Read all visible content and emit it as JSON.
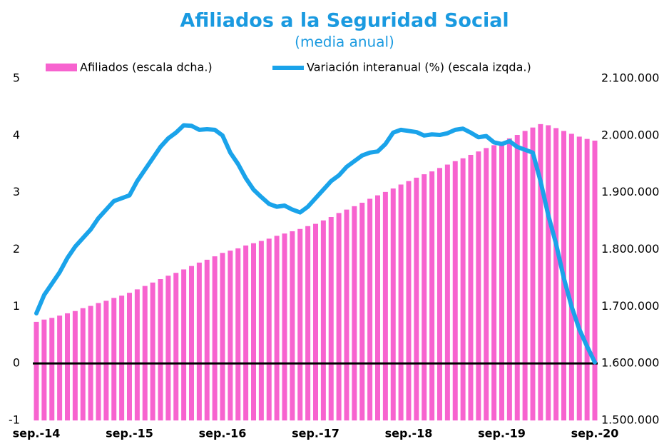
{
  "chart_data": {
    "type": "bar_line",
    "title": "Afiliados a la Seguridad Social",
    "subtitle": "(media anual)",
    "categories": [
      "sep.-14",
      null,
      null,
      null,
      null,
      null,
      null,
      null,
      null,
      null,
      null,
      null,
      "sep.-15",
      null,
      null,
      null,
      null,
      null,
      null,
      null,
      null,
      null,
      null,
      null,
      "sep.-16",
      null,
      null,
      null,
      null,
      null,
      null,
      null,
      null,
      null,
      null,
      null,
      "sep.-17",
      null,
      null,
      null,
      null,
      null,
      null,
      null,
      null,
      null,
      null,
      null,
      "sep.-18",
      null,
      null,
      null,
      null,
      null,
      null,
      null,
      null,
      null,
      null,
      null,
      "sep.-19",
      null,
      null,
      null,
      null,
      null,
      null,
      null,
      null,
      null,
      null,
      null,
      "sep.-20"
    ],
    "series": [
      {
        "name": "Afiliados (escala dcha.)",
        "color": "#f763cf",
        "axis": "y2",
        "values": [
          1673000,
          1677000,
          1680000,
          1684000,
          1688000,
          1692000,
          1697000,
          1701000,
          1706000,
          1710000,
          1715000,
          1719000,
          1724000,
          1730000,
          1736000,
          1742000,
          1748000,
          1754000,
          1759000,
          1765000,
          1771000,
          1777000,
          1782000,
          1788000,
          1794000,
          1798000,
          1802000,
          1807000,
          1811000,
          1815000,
          1819000,
          1824000,
          1828000,
          1832000,
          1836000,
          1841000,
          1845000,
          1851000,
          1857000,
          1864000,
          1870000,
          1876000,
          1882000,
          1889000,
          1895000,
          1901000,
          1907000,
          1914000,
          1920000,
          1926000,
          1932000,
          1937000,
          1943000,
          1949000,
          1955000,
          1960000,
          1966000,
          1972000,
          1978000,
          1983000,
          1989000,
          1995000,
          2001000,
          2008000,
          2014000,
          2020000,
          2018000,
          2013000,
          2008000,
          2003000,
          1998000,
          1994000,
          1991000
        ]
      },
      {
        "name": "Variación interanual (%) (escala izqda.)",
        "color": "#1aa3ea",
        "axis": "y",
        "values": [
          0.88,
          1.2,
          1.4,
          1.6,
          1.85,
          2.05,
          2.2,
          2.35,
          2.55,
          2.7,
          2.85,
          2.9,
          2.95,
          3.2,
          3.4,
          3.6,
          3.8,
          3.95,
          4.05,
          4.18,
          4.17,
          4.1,
          4.11,
          4.1,
          4.0,
          3.7,
          3.5,
          3.25,
          3.05,
          2.92,
          2.8,
          2.75,
          2.77,
          2.7,
          2.65,
          2.75,
          2.9,
          3.05,
          3.2,
          3.3,
          3.45,
          3.55,
          3.65,
          3.7,
          3.72,
          3.85,
          4.05,
          4.1,
          4.08,
          4.06,
          4.0,
          4.02,
          4.01,
          4.04,
          4.1,
          4.12,
          4.05,
          3.97,
          3.99,
          3.88,
          3.85,
          3.9,
          3.8,
          3.75,
          3.7,
          3.2,
          2.6,
          2.1,
          1.5,
          1.0,
          0.6,
          0.3,
          0.02
        ]
      }
    ],
    "ylim": [
      -1,
      5
    ],
    "yticks": [
      -1,
      0,
      1,
      2,
      3,
      4,
      5
    ],
    "y2lim": [
      1500000,
      2100000
    ],
    "y2ticks": [
      {
        "value": 1500000,
        "label": "1.500.000"
      },
      {
        "value": 1600000,
        "label": "1.600.000"
      },
      {
        "value": 1700000,
        "label": "1.700.000"
      },
      {
        "value": 1800000,
        "label": "1.800.000"
      },
      {
        "value": 1900000,
        "label": "1.900.000"
      },
      {
        "value": 2000000,
        "label": "2.000.000"
      },
      {
        "value": 2100000,
        "label": "2.100.000"
      }
    ],
    "zero_line": 0,
    "legend": "top"
  }
}
